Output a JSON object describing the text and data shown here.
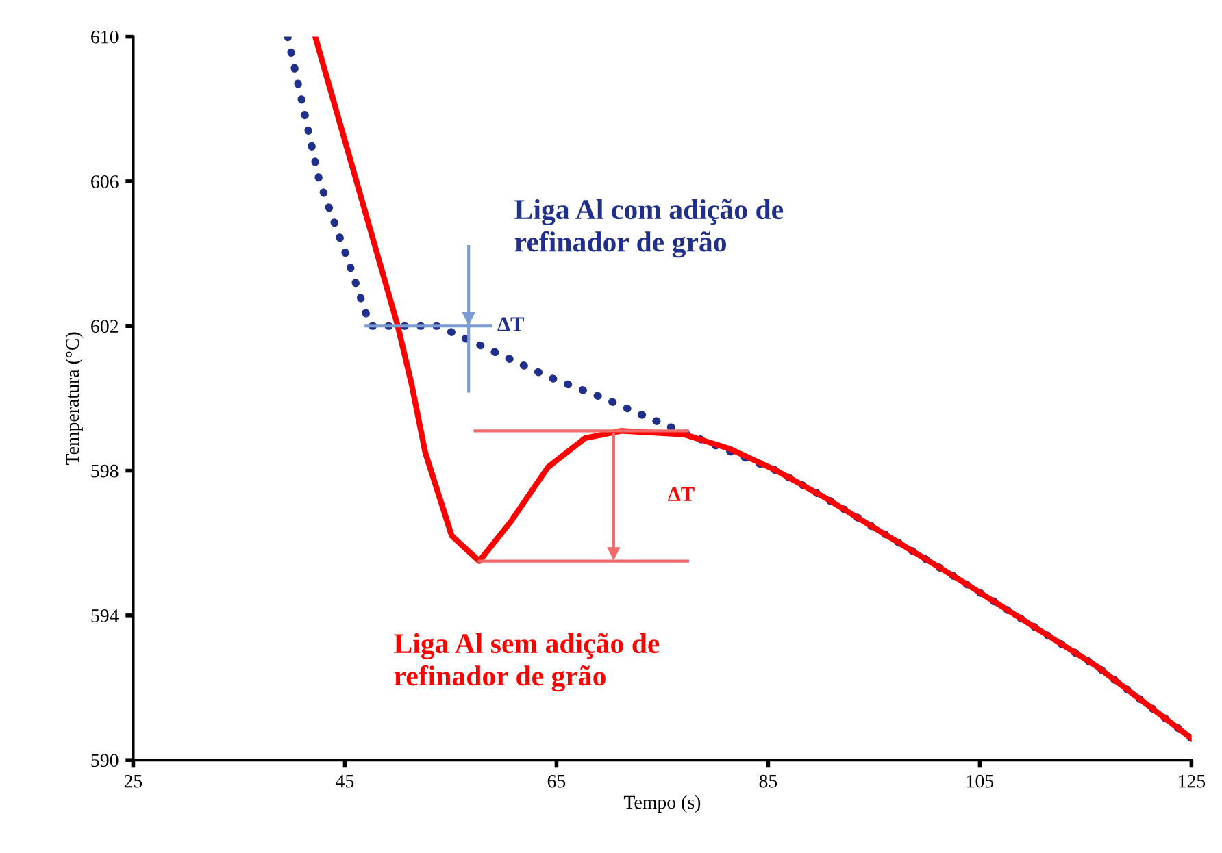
{
  "chart_data": {
    "type": "line",
    "xlabel": "Tempo (s)",
    "ylabel": "Temperatura (°C)",
    "xlim": [
      25,
      125
    ],
    "ylim": [
      590,
      610
    ],
    "xticks": [
      25,
      45,
      65,
      85,
      105,
      125
    ],
    "yticks": [
      590,
      594,
      598,
      602,
      606,
      610
    ],
    "grid": false,
    "legend": false,
    "series": [
      {
        "color": "#1f2f8a",
        "line_style": "dotted",
        "x": [
          39.6,
          42.6,
          45.2,
          47.4,
          50.5,
          53.8,
          56.8,
          60.5,
          64.2,
          69.5,
          75.0,
          80.0,
          85.8,
          90.1,
          103,
          116,
          125
        ],
        "values": [
          610,
          606.0,
          603.9,
          602.0,
          602.0,
          602.0,
          601.6,
          601.1,
          600.6,
          600.0,
          599.3,
          598.7,
          598.0,
          597.3,
          595.0,
          592.6,
          590.6
        ]
      },
      {
        "color": "#ff0000",
        "line_style": "solid",
        "x": [
          42.2,
          50.0,
          51.3,
          52.6,
          55.1,
          57.7,
          60.7,
          64.2,
          67.7,
          71.1,
          77.1,
          81.4,
          85.8,
          90.1,
          103,
          116,
          125
        ],
        "values": [
          610,
          602.0,
          600.4,
          598.5,
          596.2,
          595.5,
          596.6,
          598.1,
          598.9,
          599.1,
          599.0,
          598.6,
          598.0,
          597.3,
          595.0,
          592.6,
          590.6
        ]
      },
      {
        "color": "#7b9bd1",
        "line_style": "solid",
        "x": [
          47.0,
          58.8
        ],
        "values": [
          602.0,
          602.0
        ]
      },
      {
        "color": "#7b9bd1",
        "line_style": "solid",
        "x": [
          56.7,
          56.7,
          56.7
        ],
        "values": [
          604.2,
          602.2,
          600.2
        ]
      },
      {
        "color": "#f26b6b",
        "line_style": "solid",
        "x": [
          57.3,
          77.4
        ],
        "values": [
          599.1,
          599.1
        ]
      },
      {
        "color": "#f26b6b",
        "line_style": "solid",
        "x": [
          57.7,
          77.4
        ],
        "values": [
          595.5,
          595.5
        ]
      },
      {
        "color": "#f26b6b",
        "line_style": "solid",
        "x": [
          70.4,
          70.4
        ],
        "values": [
          599.0,
          595.7
        ]
      }
    ],
    "annotations": [
      "Liga Al com adição de\nrefinador de grão",
      "Liga Al sem adição de\nrefinador de grão",
      {
        "text": "ΔT",
        "x": 59.4,
        "y": 602.0
      },
      "ΔT"
    ]
  }
}
